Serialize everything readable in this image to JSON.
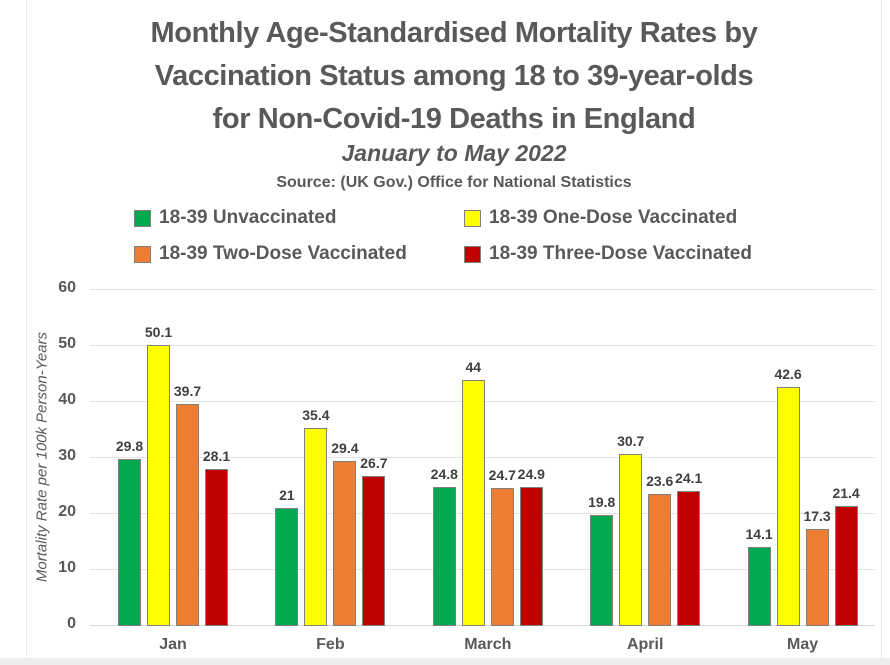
{
  "header": {
    "title_lines": [
      "Monthly Age-Standardised Mortality Rates by",
      "Vaccination Status among 18 to 39-year-olds",
      "for Non-Covid-19 Deaths in England"
    ],
    "subtitle": "January to May 2022",
    "source": "Source: (UK Gov.) Office for National Statistics"
  },
  "colors": {
    "background": "#FFFFFF",
    "text": "#595959",
    "data_label": "#404040",
    "gridline": "#E4E4E4",
    "zero_line": "#D9D9D9",
    "edge_line": "#EBEBEB",
    "bar_border": "#7F7F7F"
  },
  "chart_data": {
    "type": "bar",
    "title": "Monthly Age-Standardised Mortality Rates by Vaccination Status among 18 to 39-year-olds for Non-Covid-19 Deaths in England",
    "subtitle": "January to May 2022",
    "source": "Source: (UK Gov.) Office for National Statistics",
    "categories": [
      "Jan",
      "Feb",
      "March",
      "April",
      "May"
    ],
    "series": [
      {
        "name": "18-39 Unvaccinated",
        "color": "#00A850",
        "values": [
          29.8,
          21,
          24.8,
          19.8,
          14.1
        ],
        "labels": [
          "29.8",
          "21",
          "24.8",
          "19.8",
          "14.1"
        ]
      },
      {
        "name": "18-39 One-Dose Vaccinated",
        "color": "#FFFF00",
        "values": [
          50.1,
          35.4,
          44,
          30.7,
          42.6
        ],
        "labels": [
          "50.1",
          "35.4",
          "44",
          "30.7",
          "42.6"
        ]
      },
      {
        "name": "18-39 Two-Dose Vaccinated",
        "color": "#ED7D31",
        "values": [
          39.7,
          29.4,
          24.7,
          23.6,
          17.3
        ],
        "labels": [
          "39.7",
          "29.4",
          "24.7",
          "23.6",
          "17.3"
        ]
      },
      {
        "name": "18-39 Three-Dose Vaccinated",
        "color": "#C00000",
        "values": [
          28.1,
          26.7,
          24.9,
          24.1,
          21.4
        ],
        "labels": [
          "28.1",
          "26.7",
          "24.9",
          "24.1",
          "21.4"
        ]
      }
    ],
    "xlabel": "",
    "ylabel": "Mortality Rate per 100k Person-Years",
    "ylim": [
      0,
      60
    ],
    "yticks": [
      0,
      10,
      20,
      30,
      40,
      50,
      60
    ],
    "grid": true,
    "legend_position": "top",
    "bar_labels_shown": true
  }
}
